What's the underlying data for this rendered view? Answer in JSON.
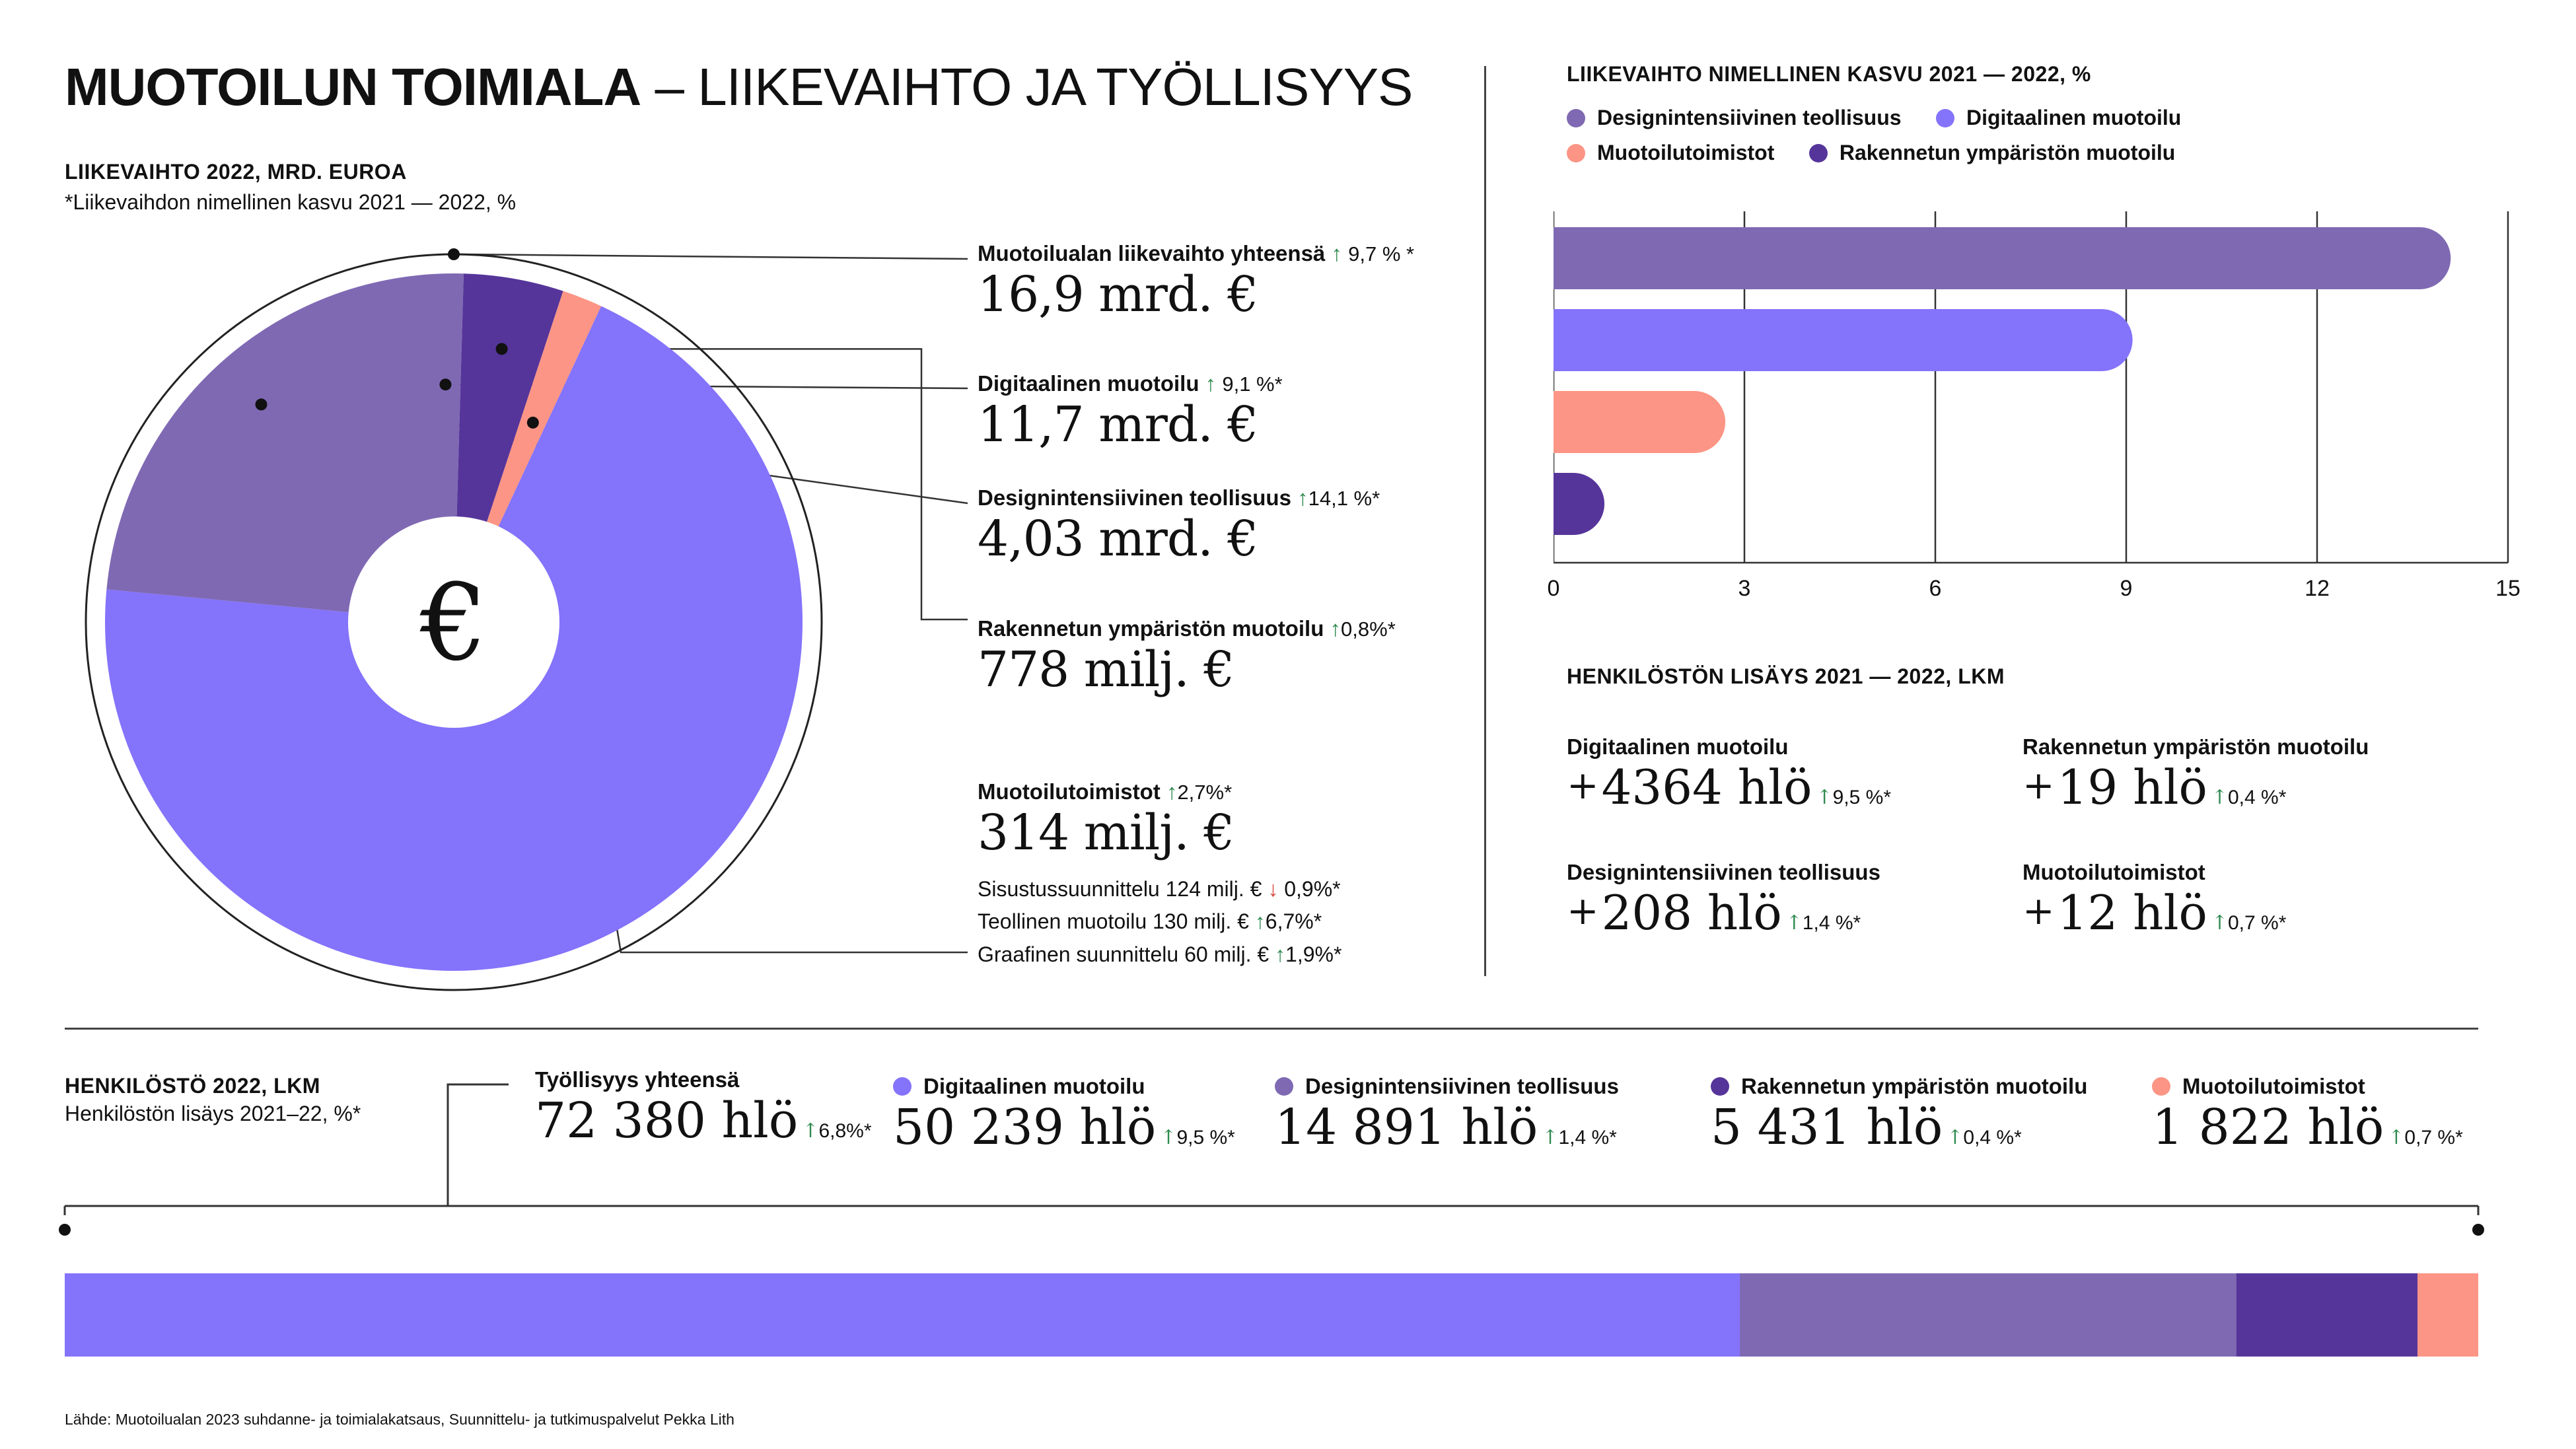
{
  "header": {
    "title_bold": "MUOTOILUN TOIMIALA",
    "title_rest": " – LIIKEVAIHTO JA TYÖLLISYYS",
    "revenue_heading": "LIIKEVAIHTO 2022, MRD. EUROA",
    "revenue_note": "*Liikevaihdon nimellinen kasvu 2021 — 2022, %"
  },
  "colors": {
    "digital": "#8473fb",
    "design_intensive": "#7f69b3",
    "built_env": "#56359a",
    "agencies": "#fc9585",
    "growth_up": "#2f8a4f",
    "growth_down": "#d6443a"
  },
  "donut": {
    "center_symbol": "€",
    "annotations": [
      {
        "label": "Muotoilualan liikevaihto yhteensä",
        "arrow": "↑",
        "growth": "9,7 % *",
        "value": "16,9 mrd. €"
      },
      {
        "label": "Digitaalinen muotoilu",
        "arrow": "↑",
        "growth": "9,1 %*",
        "value": "11,7 mrd. €"
      },
      {
        "label": "Designintensiivinen teollisuus",
        "arrow": "↑",
        "growth": "14,1 %*",
        "value": "4,03 mrd. €"
      },
      {
        "label": "Rakennetun ympäristön muotoilu",
        "arrow": "↑",
        "growth": "0,8%*",
        "value": "778 milj. €"
      },
      {
        "label": "Muotoilutoimistot",
        "arrow": "↑",
        "growth": "2,7%*",
        "value": "314 milj. €"
      }
    ],
    "sub_lines": [
      {
        "text": "Sisustussuunnittelu 124 milj. €",
        "arrow": "↓",
        "growth": "0,9%*"
      },
      {
        "text": "Teollinen muotoilu 130 milj. €",
        "arrow": "↑",
        "growth": "6,7%*"
      },
      {
        "text": "Graafinen suunnittelu 60 milj. €",
        "arrow": "↑",
        "growth": "1,9%*"
      }
    ]
  },
  "growth_chart": {
    "heading": "LIIKEVAIHTO NIMELLINEN KASVU  2021 — 2022, %",
    "legend": [
      {
        "name": "Designintensiivinen teollisuus",
        "color": "#7f69b3"
      },
      {
        "name": "Digitaalinen muotoilu",
        "color": "#8473fb"
      },
      {
        "name": "Muotoilutoimistot",
        "color": "#fc9585"
      },
      {
        "name": "Rakennetun ympäristön muotoilu",
        "color": "#56359a"
      }
    ],
    "ticks": [
      "0",
      "3",
      "6",
      "9",
      "12",
      "15"
    ]
  },
  "increase": {
    "heading": "HENKILÖSTÖN LISÄYS  2021 — 2022, LKM",
    "items": [
      {
        "label": "Digitaalinen muotoilu",
        "value": "4364 hlö",
        "growth": "9,5 %*"
      },
      {
        "label": "Rakennetun ympäristön muotoilu",
        "value": "19 hlö",
        "growth": "0,4 %*"
      },
      {
        "label": "Designintensiivinen teollisuus",
        "value": "208 hlö",
        "growth": "1,4 %*"
      },
      {
        "label": "Muotoilutoimistot",
        "value": "12 hlö",
        "growth": "0,7 %*"
      }
    ]
  },
  "employment": {
    "heading": "HENKILÖSTÖ 2022, LKM",
    "note": "Henkilöstön lisäys 2021–22, %*",
    "total": {
      "label": "Työllisyys yhteensä",
      "value": "72 380 hlö",
      "growth": "6,8%*"
    },
    "items": [
      {
        "label": "Digitaalinen muotoilu",
        "value": "50 239 hlö",
        "growth": "9,5 %*"
      },
      {
        "label": "Designintensiivinen teollisuus",
        "value": "14 891 hlö",
        "growth": "1,4 %*"
      },
      {
        "label": "Rakennetun ympäristön muotoilu",
        "value": "5 431 hlö",
        "growth": "0,4 %*"
      },
      {
        "label": "Muotoilutoimistot",
        "value": "1 822 hlö",
        "growth": "0,7 %*"
      }
    ]
  },
  "source": "Lähde: Muotoilualan 2023 suhdanne- ja toimialakatsaus, Suunnittelu- ja tutkimuspalvelut Pekka Lith",
  "chart_data": [
    {
      "type": "pie",
      "title": "LIIKEVAIHTO 2022, MRD. EUROA",
      "categories": [
        "Digitaalinen muotoilu",
        "Designintensiivinen teollisuus",
        "Rakennetun ympäristön muotoilu",
        "Muotoilutoimistot"
      ],
      "values": [
        11.7,
        4.03,
        0.778,
        0.314
      ],
      "unit": "mrd. €",
      "total": 16.9
    },
    {
      "type": "bar",
      "title": "LIIKEVAIHTO NIMELLINEN KASVU  2021 — 2022, %",
      "orientation": "horizontal",
      "categories": [
        "Designintensiivinen teollisuus",
        "Digitaalinen muotoilu",
        "Muotoilutoimistot",
        "Rakennetun ympäristön muotoilu"
      ],
      "values": [
        14.1,
        9.1,
        2.7,
        0.8
      ],
      "xlim": [
        0,
        15
      ],
      "xticks": [
        0,
        3,
        6,
        9,
        12,
        15
      ],
      "grid": true
    },
    {
      "type": "bar",
      "title": "HENKILÖSTÖ 2022, LKM",
      "orientation": "stacked-horizontal",
      "categories": [
        "Digitaalinen muotoilu",
        "Designintensiivinen teollisuus",
        "Rakennetun ympäristön muotoilu",
        "Muotoilutoimistot"
      ],
      "values": [
        50239,
        14891,
        5431,
        1822
      ],
      "total": 72380
    }
  ]
}
